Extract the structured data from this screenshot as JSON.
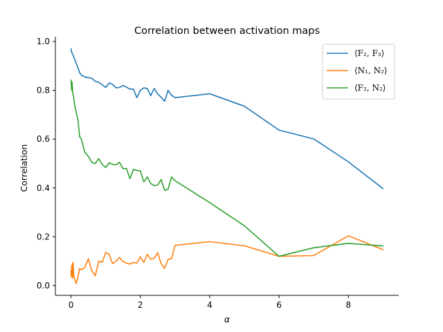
{
  "chart_data": {
    "type": "line",
    "title": "Correlation between activation maps",
    "xlabel": "α",
    "ylabel": "Correlation",
    "xlim": [
      -0.45,
      9.45
    ],
    "ylim": [
      -0.04,
      1.02
    ],
    "xticks": [
      0,
      2,
      4,
      6,
      8
    ],
    "yticks": [
      0.0,
      0.2,
      0.4,
      0.6,
      0.8,
      1.0
    ],
    "xtick_labels": [
      "0",
      "2",
      "4",
      "6",
      "8"
    ],
    "ytick_labels": [
      "0.0",
      "0.2",
      "0.4",
      "0.6",
      "0.8",
      "1.0"
    ],
    "grid": false,
    "legend_position": "upper right",
    "series": [
      {
        "name": "⟨F₂, F₃⟩",
        "color": "#1f77b4",
        "x": [
          0.0,
          0.01,
          0.02,
          0.03,
          0.05,
          0.1,
          0.15,
          0.2,
          0.25,
          0.3,
          0.4,
          0.5,
          0.6,
          0.7,
          0.8,
          0.9,
          1.0,
          1.1,
          1.2,
          1.3,
          1.4,
          1.5,
          1.6,
          1.7,
          1.8,
          1.9,
          2.0,
          2.1,
          2.2,
          2.3,
          2.4,
          2.5,
          2.6,
          2.7,
          2.8,
          2.9,
          3.0,
          4.0,
          5.0,
          6.0,
          7.0,
          8.0,
          9.0
        ],
        "values": [
          0.97,
          0.965,
          0.955,
          0.952,
          0.948,
          0.93,
          0.91,
          0.893,
          0.873,
          0.862,
          0.855,
          0.852,
          0.85,
          0.837,
          0.833,
          0.823,
          0.812,
          0.83,
          0.825,
          0.81,
          0.812,
          0.82,
          0.813,
          0.805,
          0.805,
          0.77,
          0.8,
          0.81,
          0.808,
          0.778,
          0.808,
          0.785,
          0.772,
          0.755,
          0.8,
          0.78,
          0.77,
          0.786,
          0.735,
          0.637,
          0.601,
          0.507,
          0.397
        ]
      },
      {
        "name": "⟨N₁, N₂⟩",
        "color": "#ff7f0e",
        "x": [
          0.0,
          0.01,
          0.02,
          0.03,
          0.04,
          0.05,
          0.06,
          0.08,
          0.1,
          0.15,
          0.2,
          0.25,
          0.3,
          0.4,
          0.5,
          0.6,
          0.7,
          0.8,
          0.9,
          1.0,
          1.1,
          1.2,
          1.3,
          1.4,
          1.5,
          1.6,
          1.7,
          1.8,
          1.9,
          2.0,
          2.1,
          2.2,
          2.3,
          2.4,
          2.5,
          2.6,
          2.7,
          2.8,
          2.9,
          3.0,
          4.0,
          5.0,
          6.0,
          7.0,
          8.0,
          9.0
        ],
        "values": [
          0.06,
          0.035,
          0.08,
          0.045,
          0.09,
          0.03,
          0.095,
          0.04,
          0.03,
          0.008,
          0.035,
          0.07,
          0.065,
          0.075,
          0.11,
          0.06,
          0.04,
          0.1,
          0.095,
          0.135,
          0.128,
          0.09,
          0.1,
          0.115,
          0.098,
          0.092,
          0.088,
          0.095,
          0.092,
          0.118,
          0.095,
          0.128,
          0.108,
          0.112,
          0.135,
          0.09,
          0.07,
          0.108,
          0.11,
          0.165,
          0.18,
          0.163,
          0.12,
          0.123,
          0.204,
          0.147
        ]
      },
      {
        "name": "⟨F₂, N₂⟩",
        "color": "#2ca02c",
        "x": [
          0.0,
          0.01,
          0.02,
          0.03,
          0.05,
          0.08,
          0.1,
          0.15,
          0.2,
          0.25,
          0.3,
          0.4,
          0.5,
          0.6,
          0.7,
          0.8,
          0.9,
          1.0,
          1.1,
          1.2,
          1.3,
          1.4,
          1.5,
          1.6,
          1.7,
          1.8,
          1.9,
          2.0,
          2.1,
          2.2,
          2.3,
          2.4,
          2.5,
          2.6,
          2.7,
          2.8,
          2.9,
          3.0,
          4.0,
          5.0,
          6.0,
          7.0,
          8.0,
          9.0
        ],
        "values": [
          0.842,
          0.82,
          0.8,
          0.835,
          0.79,
          0.77,
          0.745,
          0.71,
          0.68,
          0.61,
          0.6,
          0.545,
          0.53,
          0.505,
          0.5,
          0.52,
          0.497,
          0.484,
          0.503,
          0.497,
          0.495,
          0.505,
          0.479,
          0.48,
          0.438,
          0.476,
          0.472,
          0.47,
          0.425,
          0.445,
          0.418,
          0.41,
          0.412,
          0.435,
          0.39,
          0.395,
          0.445,
          0.43,
          0.34,
          0.245,
          0.12,
          0.155,
          0.173,
          0.162
        ]
      }
    ]
  }
}
